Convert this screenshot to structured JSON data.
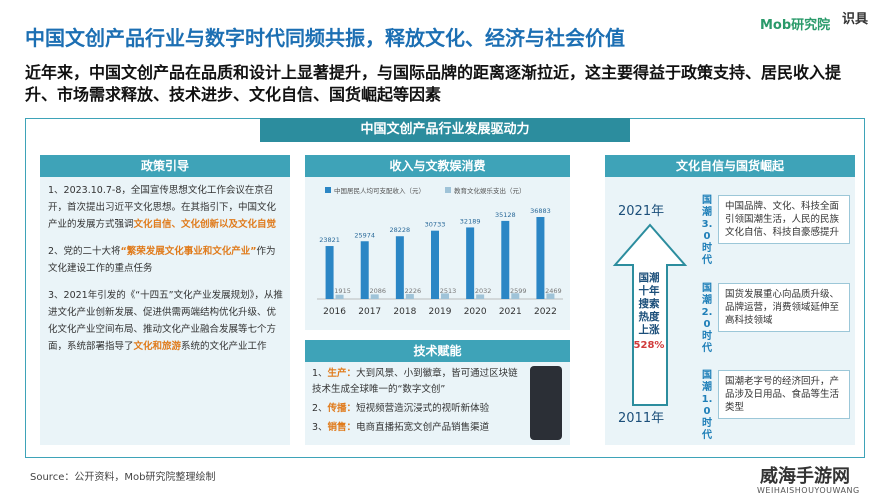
{
  "header": {
    "title": "中国文创产品行业与数字时代同频共振，释放文化、经济与社会价值",
    "subtitle": "近年来，中国文创产品在品质和设计上显著提升，与国际品牌的距离逐渐拉近，这主要得益于政策支持、居民收入提升、市场需求释放、技术进步、文化自信、国货崛起等因素",
    "logo": "Mob研究院",
    "logo2": "识具"
  },
  "panel_title": "中国文创产品行业发展驱动力",
  "policy": {
    "title": "政策引导",
    "items": [
      {
        "before": "1、2023.10.7-8，全国宣传思想文化工作会议在京召开，首次提出习近平文化思想。在其指引下，中国文化产业的发展方式强调",
        "highlight": "文化自信、文化创新以及文化自觉",
        "after": ""
      },
      {
        "before": "2、党的二十大将",
        "highlight": "“繁荣发展文化事业和文化产业”",
        "after": "作为文化建设工作的重点任务"
      },
      {
        "before": "3、2021年引发的《“十四五”文化产业发展规划》，从推进文化产业创新发展、促进供需两端结构优化升级、优化文化产业空间布局、推动文化产业融合发展等七个方面，系统部署指导了",
        "highlight": "文化和旅游",
        "after": "系统的文化产业工作"
      }
    ]
  },
  "chart_data": {
    "type": "bar",
    "title": "收入与文教娱消费",
    "categories": [
      "2016",
      "2017",
      "2018",
      "2019",
      "2020",
      "2021",
      "2022"
    ],
    "series": [
      {
        "name": "中国居民人均可支配收入（元）",
        "color": "#2b86c5",
        "values": [
          23821,
          25974,
          28228,
          30733,
          32189,
          35128,
          36883
        ]
      },
      {
        "name": "教育文化娱乐支出（元）",
        "color": "#9fc3d8",
        "values": [
          1915,
          2086,
          2226,
          2513,
          2032,
          2599,
          2469
        ]
      }
    ]
  },
  "tech": {
    "title": "技术赋能",
    "items": [
      {
        "number": "1、",
        "label": "生产：",
        "text": "大到风景、小到徽章，皆可通过区块链技术生成全球唯一的“数字文创”"
      },
      {
        "number": "2、",
        "label": "传播：",
        "text": "短视频营造沉浸式的视听新体验"
      },
      {
        "number": "3、",
        "label": "销售：",
        "text": "电商直播拓宽文创产品销售渠道"
      }
    ]
  },
  "culture": {
    "title": "文化自信与国货崛起",
    "top_year": "2021年",
    "bottom_year": "2011年",
    "arrow_text": "国潮十年搜索热度上涨",
    "arrow_value": "528%",
    "stages": [
      {
        "name": "国潮3.0时代",
        "text": "中国品牌、文化、科技全面引领国潮生活，人民的民族文化自信、科技自豪感提升"
      },
      {
        "name": "国潮2.0时代",
        "text": "国货发展重心向品质升级、品牌运营，消费领域延伸至高科技领域"
      },
      {
        "name": "国潮1.0时代",
        "text": "国潮老字号的经济回升，产品涉及日用品、食品等生活类型"
      }
    ]
  },
  "source": "Source：公开资料，Mob研究院整理绘制",
  "watermark": {
    "name": "威海手游网",
    "pinyin": "WEIHAISHOUYOUWANG"
  }
}
